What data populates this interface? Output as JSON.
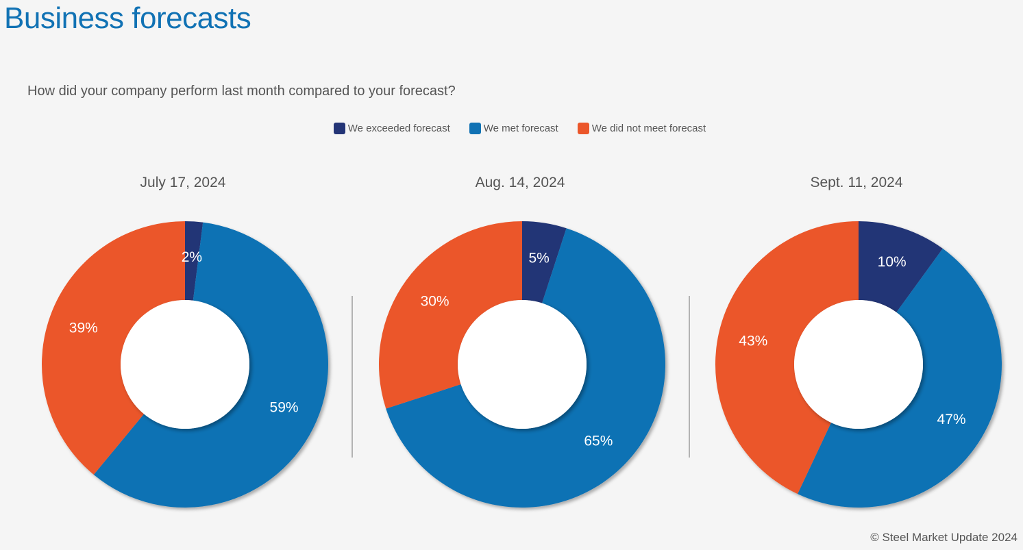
{
  "page": {
    "title": "Business forecasts",
    "credit": "© Steel Market Update 2024"
  },
  "chart_data": {
    "type": "donut",
    "title": "How did your company perform last month compared to your forecast?",
    "legend_position": "top-center",
    "series": [
      {
        "name": "We exceeded forecast",
        "color": "#233476"
      },
      {
        "name": "We met forecast",
        "color": "#1172b4"
      },
      {
        "name": "We did not meet forecast",
        "color": "#eb562a"
      }
    ],
    "charts": [
      {
        "label": "July 17, 2024",
        "values": [
          2,
          59,
          39
        ],
        "labels": [
          "2%",
          "59%",
          "39%"
        ]
      },
      {
        "label": "Aug. 14, 2024",
        "values": [
          5,
          65,
          30
        ],
        "labels": [
          "5%",
          "65%",
          "30%"
        ]
      },
      {
        "label": "Sept. 11, 2024",
        "values": [
          10,
          47,
          43
        ],
        "labels": [
          "10%",
          "47%",
          "43%"
        ]
      }
    ]
  }
}
